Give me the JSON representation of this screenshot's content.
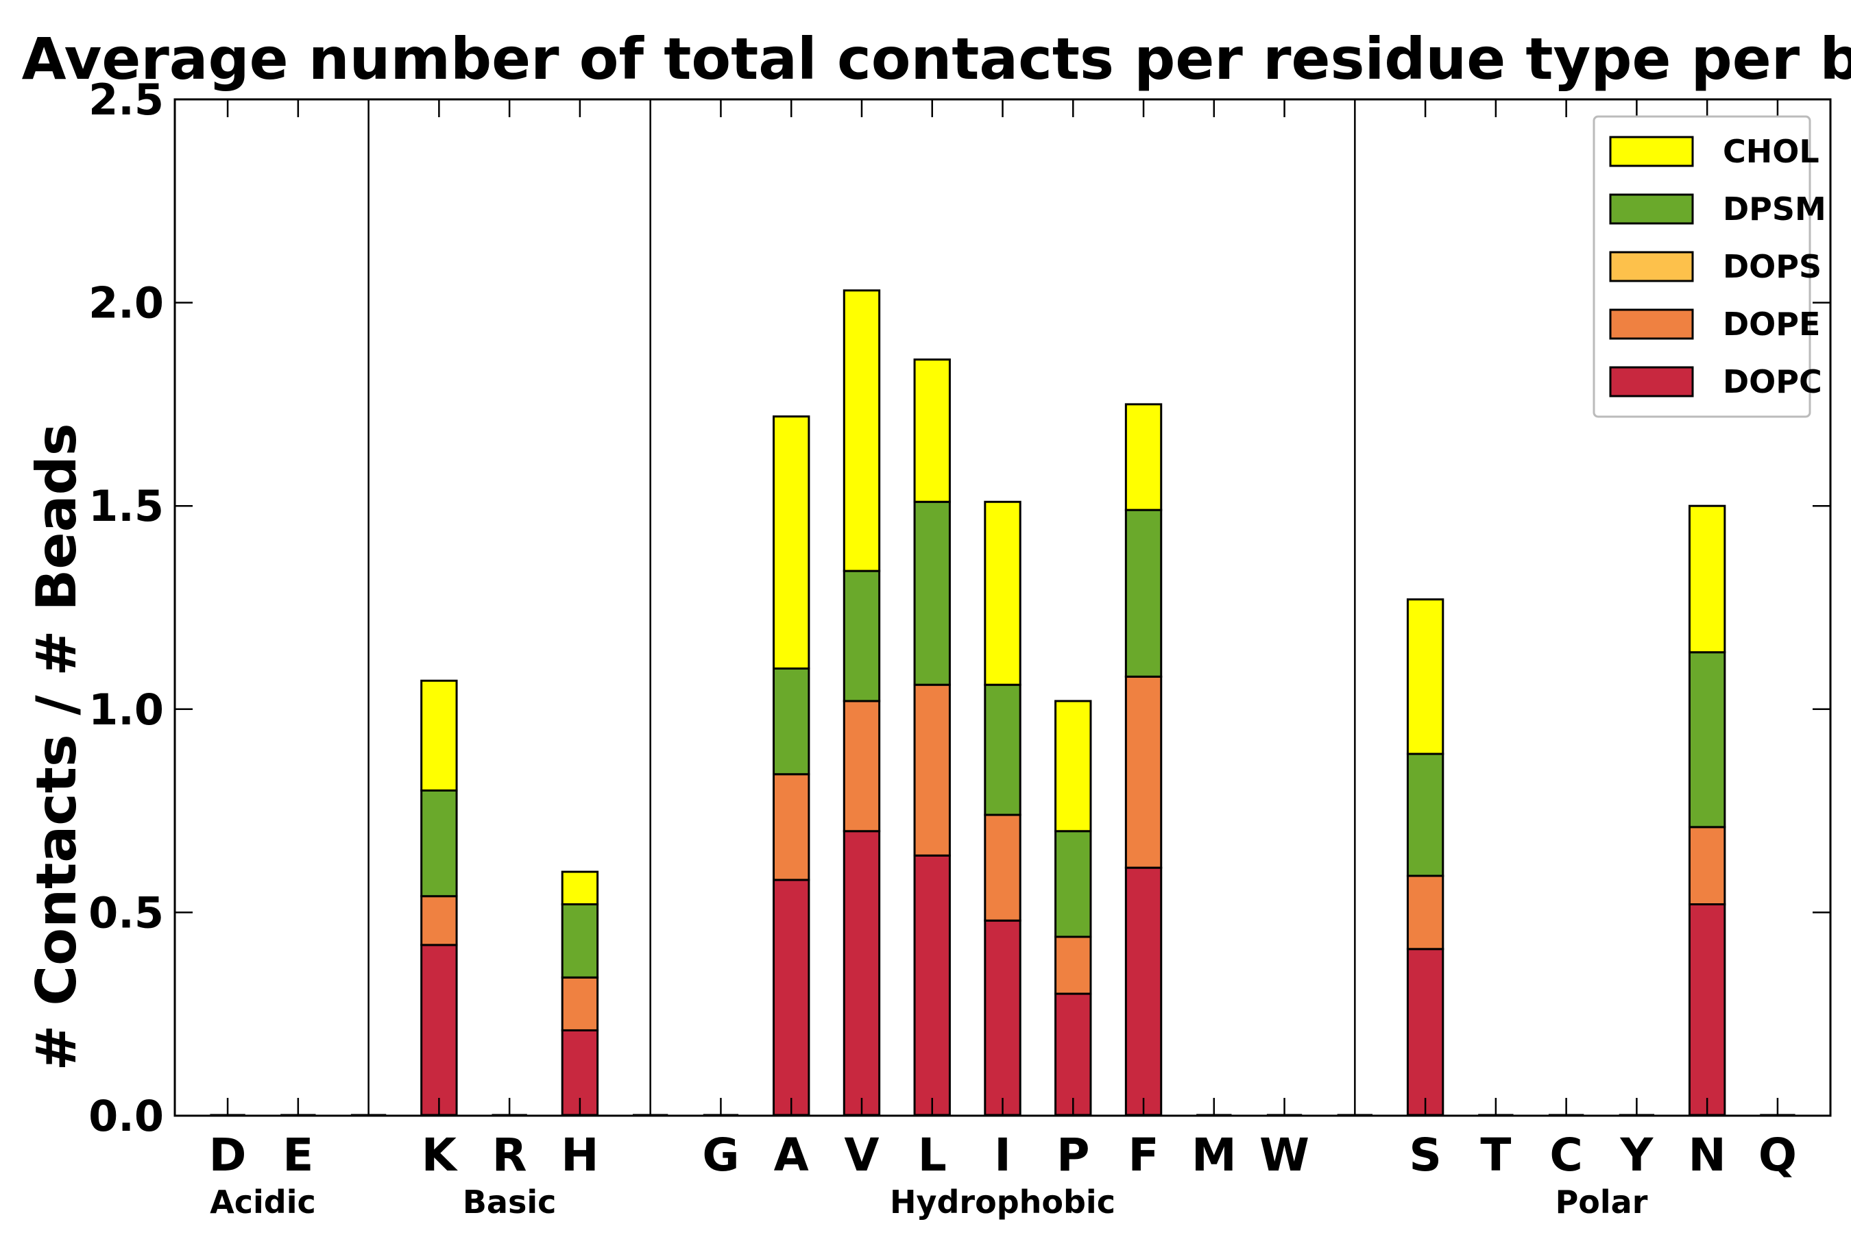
{
  "chart_data": {
    "type": "bar",
    "stacked": true,
    "title": "Average number of total contacts per residue type per bead",
    "xlabel": "",
    "ylabel": "# Contacts / # Beads",
    "ylim": [
      0,
      2.5
    ],
    "yticks": [
      "0.0",
      "0.5",
      "1.0",
      "1.5",
      "2.0",
      "2.5"
    ],
    "grid": false,
    "legend_position": "top-right",
    "categories": [
      "D",
      "E",
      "",
      "K",
      "R",
      "H",
      "",
      "G",
      "A",
      "V",
      "L",
      "I",
      "P",
      "F",
      "M",
      "W",
      "",
      "S",
      "T",
      "C",
      "Y",
      "N",
      "Q"
    ],
    "groups": [
      {
        "name": "Acidic",
        "start": 0,
        "end": 1
      },
      {
        "name": "Basic",
        "start": 3,
        "end": 5
      },
      {
        "name": "Hydrophobic",
        "start": 7,
        "end": 15
      },
      {
        "name": "Polar",
        "start": 17,
        "end": 22
      }
    ],
    "series": [
      {
        "name": "DOPC",
        "color": "#c8283f",
        "values": [
          0,
          0,
          0,
          0.42,
          0,
          0.21,
          0,
          0,
          0.58,
          0.7,
          0.64,
          0.48,
          0.3,
          0.61,
          0,
          0,
          0,
          0.41,
          0,
          0,
          0,
          0.52,
          0
        ]
      },
      {
        "name": "DOPE",
        "color": "#ef8141",
        "values": [
          0,
          0,
          0,
          0.12,
          0,
          0.13,
          0,
          0,
          0.26,
          0.32,
          0.42,
          0.26,
          0.14,
          0.47,
          0,
          0,
          0,
          0.18,
          0,
          0,
          0,
          0.19,
          0
        ]
      },
      {
        "name": "DOPS",
        "color": "#fdc14b",
        "values": [
          0,
          0,
          0,
          0,
          0,
          0,
          0,
          0,
          0,
          0,
          0,
          0,
          0,
          0,
          0,
          0,
          0,
          0,
          0,
          0,
          0,
          0,
          0
        ]
      },
      {
        "name": "DPSM",
        "color": "#6aa92b",
        "values": [
          0,
          0,
          0,
          0.26,
          0,
          0.18,
          0,
          0,
          0.26,
          0.32,
          0.45,
          0.32,
          0.26,
          0.41,
          0,
          0,
          0,
          0.3,
          0,
          0,
          0,
          0.43,
          0
        ]
      },
      {
        "name": "CHOL",
        "color": "#ffff00",
        "values": [
          0,
          0,
          0,
          0.27,
          0,
          0.08,
          0,
          0,
          0.62,
          0.69,
          0.35,
          0.45,
          0.32,
          0.26,
          0,
          0,
          0,
          0.38,
          0,
          0,
          0,
          0.36,
          0
        ]
      }
    ],
    "legend_order": [
      "CHOL",
      "DPSM",
      "DOPS",
      "DOPE",
      "DOPC"
    ]
  }
}
